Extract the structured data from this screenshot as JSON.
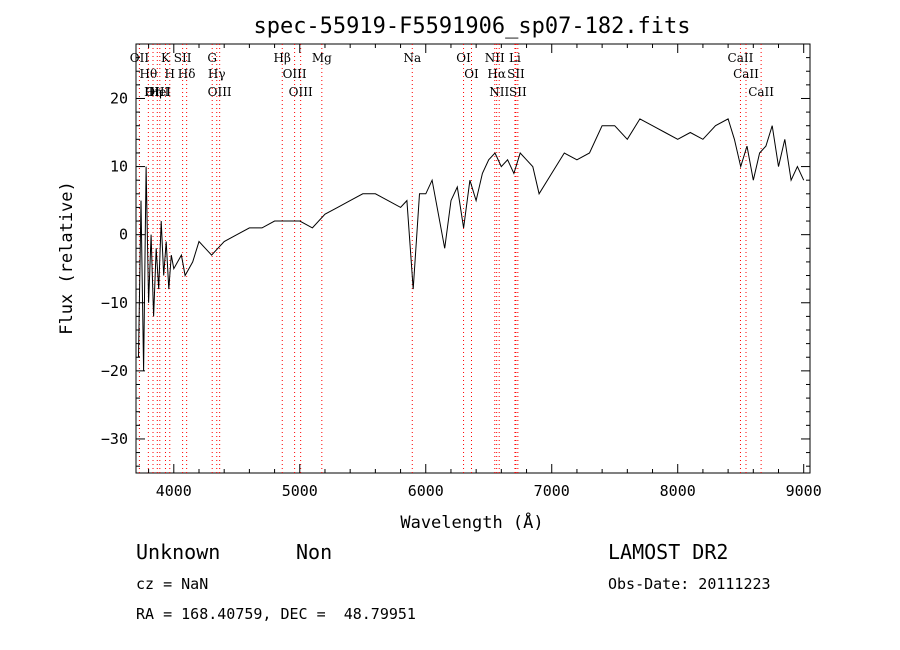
{
  "chart_data": {
    "type": "line",
    "title": "spec-55919-F5591906_sp07-182.fits",
    "xlabel": "Wavelength (Å)",
    "ylabel": "Flux (relative)",
    "xlim": [
      3700,
      9050
    ],
    "ylim": [
      -35,
      28
    ],
    "xticks": [
      4000,
      5000,
      6000,
      7000,
      8000,
      9000
    ],
    "yticks": [
      -30,
      -20,
      -10,
      0,
      10,
      20
    ],
    "grid": false,
    "line_color": "#000000",
    "marker_color": "#ff0000",
    "series": [
      {
        "x": [
          3720,
          3740,
          3760,
          3780,
          3800,
          3820,
          3840,
          3860,
          3880,
          3900,
          3920,
          3940,
          3960,
          3980,
          4000,
          4030,
          4060,
          4090,
          4120,
          4150,
          4200,
          4250,
          4300,
          4350,
          4400,
          4500,
          4600,
          4700,
          4800,
          4900,
          5000,
          5100,
          5200,
          5300,
          5400,
          5500,
          5600,
          5700,
          5800,
          5850,
          5900,
          5950,
          6000,
          6050,
          6100,
          6150,
          6200,
          6250,
          6300,
          6350,
          6400,
          6450,
          6500,
          6550,
          6600,
          6650,
          6700,
          6750,
          6800,
          6850,
          6900,
          7000,
          7100,
          7200,
          7300,
          7400,
          7500,
          7600,
          7700,
          7800,
          7900,
          8000,
          8100,
          8200,
          8300,
          8400,
          8450,
          8500,
          8550,
          8600,
          8650,
          8700,
          8750,
          8800,
          8850,
          8900,
          8950,
          9000
        ],
        "y": [
          -18,
          5,
          -20,
          10,
          -10,
          0,
          -12,
          -2,
          -8,
          2,
          -6,
          -1,
          -8,
          -3,
          -5,
          -4,
          -3,
          -6,
          -5,
          -4,
          -1,
          -2,
          -3,
          -2,
          -1,
          0,
          1,
          1,
          2,
          2,
          2,
          1,
          3,
          4,
          5,
          6,
          6,
          5,
          4,
          5,
          -8,
          6,
          6,
          8,
          3,
          -2,
          5,
          7,
          1,
          8,
          5,
          9,
          11,
          12,
          10,
          11,
          9,
          12,
          11,
          10,
          6,
          9,
          12,
          11,
          12,
          16,
          16,
          14,
          17,
          16,
          15,
          14,
          15,
          14,
          16,
          17,
          14,
          10,
          13,
          8,
          12,
          13,
          16,
          10,
          14,
          8,
          10,
          8
        ]
      }
    ],
    "spectral_lines": [
      {
        "label": "Hθ",
        "x": 3798
      },
      {
        "label": "OII",
        "x": 3727
      },
      {
        "label": "OIII",
        "x": 3869
      },
      {
        "label": "K",
        "x": 3934
      },
      {
        "label": "HeI",
        "x": 3889
      },
      {
        "label": "Hη",
        "x": 3835
      },
      {
        "label": "H",
        "x": 3968
      },
      {
        "label": "SII",
        "x": 4070
      },
      {
        "label": "Hδ",
        "x": 4102
      },
      {
        "label": "OIII",
        "x": 4364
      },
      {
        "label": "Hγ",
        "x": 4341
      },
      {
        "label": "G",
        "x": 4305
      },
      {
        "label": "OIII",
        "x": 4959
      },
      {
        "label": "OIII",
        "x": 5007
      },
      {
        "label": "Hβ",
        "x": 4861
      },
      {
        "label": "Mg",
        "x": 5175
      },
      {
        "label": "Na",
        "x": 5893
      },
      {
        "label": "OI",
        "x": 6300
      },
      {
        "label": "OI",
        "x": 6363
      },
      {
        "label": "Hα",
        "x": 6563
      },
      {
        "label": "NII",
        "x": 6548
      },
      {
        "label": "NII",
        "x": 6583
      },
      {
        "label": "SII",
        "x": 6716
      },
      {
        "label": "SII",
        "x": 6731
      },
      {
        "label": "Li",
        "x": 6708
      },
      {
        "label": "CaII",
        "x": 8498
      },
      {
        "label": "CaII",
        "x": 8542
      },
      {
        "label": "CaII",
        "x": 8662
      }
    ]
  },
  "info": {
    "class": "Unknown",
    "subclass": "Non",
    "survey": "LAMOST DR2",
    "cz": "cz = NaN",
    "obs_date": "Obs-Date: 20111223",
    "coords": "RA = 168.40759, DEC =  48.79951"
  }
}
